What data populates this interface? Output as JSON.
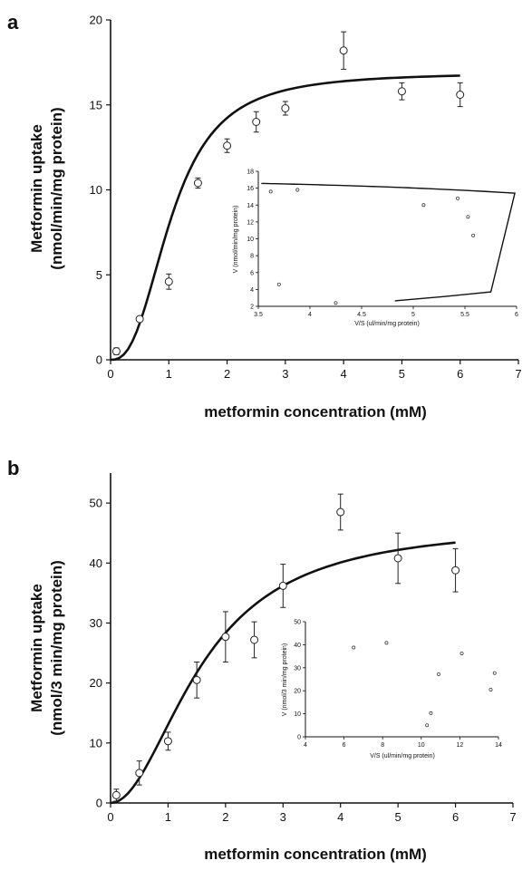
{
  "figure": {
    "panel_labels": [
      "a",
      "b"
    ]
  },
  "chart_data": [
    {
      "id": "a",
      "type": "scatter",
      "panel_label": "a",
      "xlabel": "metformin concentration (mM)",
      "ylabel_line1": "Metformin uptake",
      "ylabel_line2": "(nmol/min/mg protein)",
      "xlim": [
        0,
        7
      ],
      "ylim": [
        0,
        20
      ],
      "xticks": [
        0,
        1,
        2,
        3,
        4,
        5,
        6,
        7
      ],
      "yticks": [
        0,
        5,
        10,
        15,
        20
      ],
      "points": [
        {
          "x": 0.1,
          "y": 0.5,
          "err": 0.2
        },
        {
          "x": 0.5,
          "y": 2.4,
          "err": 0.15
        },
        {
          "x": 1.0,
          "y": 4.6,
          "err": 0.45
        },
        {
          "x": 1.5,
          "y": 10.4,
          "err": 0.3
        },
        {
          "x": 2.0,
          "y": 12.6,
          "err": 0.4
        },
        {
          "x": 2.5,
          "y": 14.0,
          "err": 0.6
        },
        {
          "x": 3.0,
          "y": 14.8,
          "err": 0.4
        },
        {
          "x": 4.0,
          "y": 18.2,
          "err": 1.1
        },
        {
          "x": 5.0,
          "y": 15.8,
          "err": 0.5
        },
        {
          "x": 6.0,
          "y": 15.6,
          "err": 0.7
        }
      ],
      "fit": {
        "vmax": 16.9,
        "k": 1.05,
        "n": 2.6,
        "x_range": [
          0,
          6
        ]
      },
      "inset": {
        "xlabel": "V/S (ul/min/mg protein)",
        "ylabel": "V (nmol/min/mg protein)",
        "xlim": [
          3.5,
          6
        ],
        "ylim": [
          2,
          18
        ],
        "xticks": [
          3.5,
          4,
          4.5,
          5,
          5.5,
          6
        ],
        "xtick_labels": [
          "3.5",
          "4",
          "4.5",
          "5",
          "5.5",
          "6"
        ],
        "yticks": [
          2,
          4,
          6,
          8,
          10,
          12,
          14,
          16,
          18
        ],
        "points": [
          {
            "x": 3.62,
            "y": 15.6
          },
          {
            "x": 3.88,
            "y": 15.8
          },
          {
            "x": 3.7,
            "y": 4.6
          },
          {
            "x": 4.25,
            "y": 2.4
          },
          {
            "x": 5.1,
            "y": 14.0
          },
          {
            "x": 5.43,
            "y": 14.8
          },
          {
            "x": 5.53,
            "y": 12.6
          },
          {
            "x": 5.58,
            "y": 10.4
          }
        ]
      }
    },
    {
      "id": "b",
      "type": "scatter",
      "panel_label": "b",
      "xlabel": "metformin concentration (mM)",
      "ylabel_line1": "Metformin uptake",
      "ylabel_line2": "(nmol/3 min/mg protein)",
      "xlim": [
        0,
        7
      ],
      "ylim": [
        0,
        55
      ],
      "xticks": [
        0,
        1,
        2,
        3,
        4,
        5,
        6,
        7
      ],
      "yticks": [
        0,
        10,
        20,
        30,
        40,
        50
      ],
      "points": [
        {
          "x": 0.1,
          "y": 1.3,
          "err": 1.0
        },
        {
          "x": 0.5,
          "y": 5.0,
          "err": 2.0
        },
        {
          "x": 1.0,
          "y": 10.3,
          "err": 1.5
        },
        {
          "x": 1.5,
          "y": 20.5,
          "err": 3.0
        },
        {
          "x": 2.0,
          "y": 27.7,
          "err": 4.2
        },
        {
          "x": 2.5,
          "y": 27.2,
          "err": 3.0
        },
        {
          "x": 3.0,
          "y": 36.2,
          "err": 3.6
        },
        {
          "x": 4.0,
          "y": 48.5,
          "err": 3.0
        },
        {
          "x": 5.0,
          "y": 40.8,
          "err": 4.2
        },
        {
          "x": 6.0,
          "y": 38.8,
          "err": 3.6
        }
      ],
      "fit": {
        "vmax": 46.5,
        "k": 1.6,
        "n": 2.0,
        "x_range": [
          0,
          6
        ]
      },
      "inset": {
        "xlabel": "V/S (ul/min/mg protein)",
        "ylabel": "V (nmol/3 min/mg protein)",
        "xlim": [
          4,
          14
        ],
        "ylim": [
          0,
          50
        ],
        "xticks": [
          4,
          6,
          8,
          10,
          12,
          14
        ],
        "xtick_labels": [
          "4",
          "6",
          "8",
          "10",
          "12",
          "14"
        ],
        "yticks": [
          0,
          10,
          20,
          30,
          40,
          50
        ],
        "points": [
          {
            "x": 6.5,
            "y": 38.8
          },
          {
            "x": 8.2,
            "y": 40.8
          },
          {
            "x": 10.3,
            "y": 5.0
          },
          {
            "x": 10.5,
            "y": 10.3
          },
          {
            "x": 10.9,
            "y": 27.2
          },
          {
            "x": 12.1,
            "y": 36.2
          },
          {
            "x": 13.6,
            "y": 20.5
          },
          {
            "x": 13.8,
            "y": 27.7
          }
        ]
      }
    }
  ]
}
